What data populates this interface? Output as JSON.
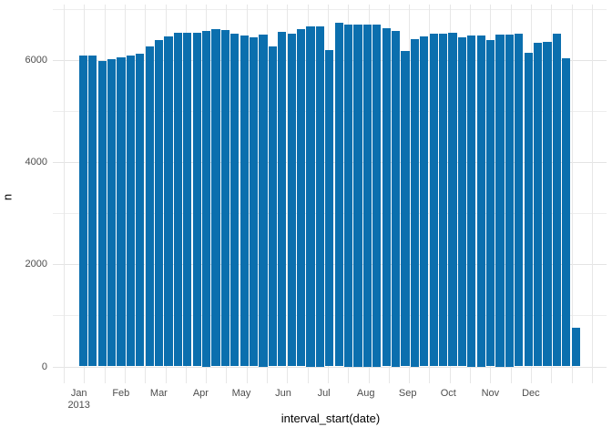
{
  "chart_data": {
    "type": "bar",
    "title": "",
    "xlabel": "interval_start(date)",
    "ylabel": "n",
    "legend": false,
    "grid": true,
    "bar_color": "#0b6fae",
    "background": "#ffffff",
    "ylim": [
      -330,
      7090
    ],
    "y_major_ticks": [
      0,
      2000,
      4000,
      6000
    ],
    "y_minor_ticks": [
      1000,
      3000,
      5000,
      7000
    ],
    "x_month_ticks": [
      {
        "label": "Jan",
        "sublabel": "2013",
        "day": 0
      },
      {
        "label": "Feb",
        "day": 31
      },
      {
        "label": "Mar",
        "day": 59
      },
      {
        "label": "Apr",
        "day": 90
      },
      {
        "label": "May",
        "day": 120
      },
      {
        "label": "Jun",
        "day": 151
      },
      {
        "label": "Jul",
        "day": 181
      },
      {
        "label": "Aug",
        "day": 212
      },
      {
        "label": "Sep",
        "day": 243
      },
      {
        "label": "Oct",
        "day": 273
      },
      {
        "label": "Nov",
        "day": 304
      },
      {
        "label": "Dec",
        "day": 334
      }
    ],
    "x_week_starts": [
      "2013-01-01",
      "2013-01-08",
      "2013-01-15",
      "2013-01-22",
      "2013-01-29",
      "2013-02-05",
      "2013-02-12",
      "2013-02-19",
      "2013-02-26",
      "2013-03-05",
      "2013-03-12",
      "2013-03-19",
      "2013-03-26",
      "2013-04-02",
      "2013-04-09",
      "2013-04-16",
      "2013-04-23",
      "2013-04-30",
      "2013-05-07",
      "2013-05-14",
      "2013-05-21",
      "2013-05-28",
      "2013-06-04",
      "2013-06-11",
      "2013-06-18",
      "2013-06-25",
      "2013-07-02",
      "2013-07-09",
      "2013-07-16",
      "2013-07-23",
      "2013-07-30",
      "2013-08-06",
      "2013-08-13",
      "2013-08-20",
      "2013-08-27",
      "2013-09-03",
      "2013-09-10",
      "2013-09-17",
      "2013-09-24",
      "2013-10-01",
      "2013-10-08",
      "2013-10-15",
      "2013-10-22",
      "2013-10-29",
      "2013-11-05",
      "2013-11-12",
      "2013-11-19",
      "2013-11-26",
      "2013-12-03",
      "2013-12-10",
      "2013-12-17",
      "2013-12-24",
      "2013-12-31"
    ],
    "values": [
      6095,
      6095,
      5985,
      6025,
      6050,
      6085,
      6130,
      6260,
      6390,
      6465,
      6530,
      6530,
      6530,
      6570,
      6610,
      6585,
      6520,
      6475,
      6450,
      6500,
      6265,
      6550,
      6520,
      6605,
      6660,
      6660,
      6200,
      6725,
      6695,
      6695,
      6695,
      6705,
      6630,
      6570,
      6175,
      6410,
      6470,
      6510,
      6510,
      6530,
      6450,
      6490,
      6490,
      6390,
      6500,
      6500,
      6510,
      6135,
      6345,
      6355,
      6525,
      6030,
      760
    ]
  }
}
